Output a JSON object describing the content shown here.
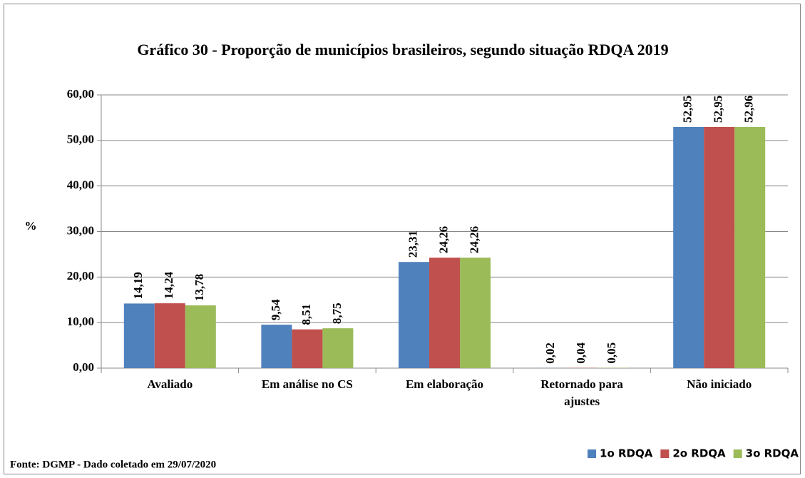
{
  "chart_data": {
    "type": "bar",
    "title": "Gráfico 30 - Proporção de municípios brasileiros,  segundo situação RDQA 2019",
    "ylabel": "%",
    "source": "Fonte: DGMP - Dado coletado em 29/07/2020",
    "categories": [
      "Avaliado",
      "Em análise no CS",
      "Em elaboração",
      "Retornado para ajustes",
      "Não iniciado"
    ],
    "series": [
      {
        "name": "1o RDQA",
        "color": "#4f81bd",
        "values": [
          14.19,
          9.54,
          23.31,
          0.02,
          52.95
        ],
        "value_labels": [
          "14,19",
          "9,54",
          "23,31",
          "0,02",
          "52,95"
        ]
      },
      {
        "name": "2o RDQA",
        "color": "#c0504d",
        "values": [
          14.24,
          8.51,
          24.26,
          0.04,
          52.95
        ],
        "value_labels": [
          "14,24",
          "8,51",
          "24,26",
          "0,04",
          "52,95"
        ]
      },
      {
        "name": "3o RDQA",
        "color": "#9bbb59",
        "values": [
          13.78,
          8.75,
          24.26,
          0.05,
          52.96
        ],
        "value_labels": [
          "13,78",
          "8,75",
          "24,26",
          "0,05",
          "52,96"
        ]
      }
    ],
    "ylim": [
      0,
      60
    ],
    "yticks": [
      {
        "value": 0,
        "label": "0,00"
      },
      {
        "value": 10,
        "label": "10,00"
      },
      {
        "value": 20,
        "label": "20,00"
      },
      {
        "value": 30,
        "label": "30,00"
      },
      {
        "value": 40,
        "label": "40,00"
      },
      {
        "value": 50,
        "label": "50,00"
      },
      {
        "value": 60,
        "label": "60,00"
      }
    ],
    "grid": true,
    "legend": "bottom-right"
  }
}
